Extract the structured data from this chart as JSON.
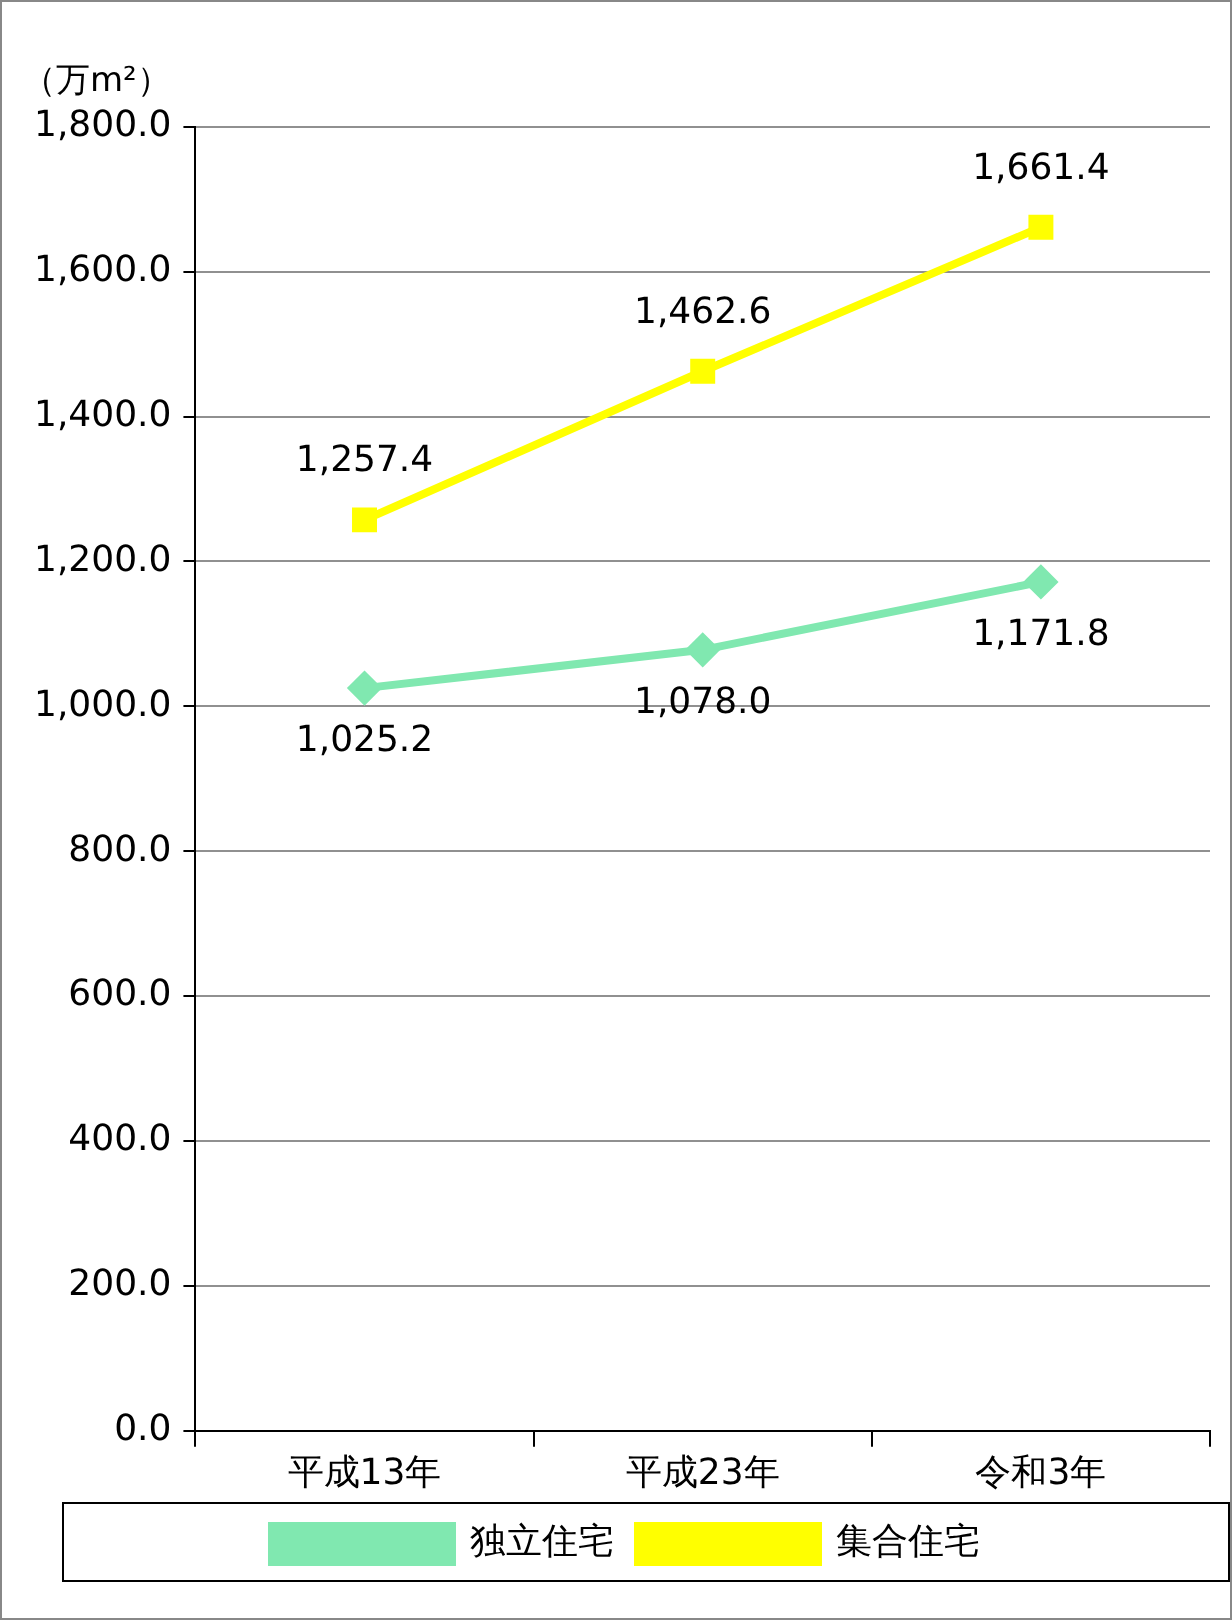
{
  "chart_data": {
    "type": "line",
    "ylabel": "（万m²）",
    "categories": [
      "平成13年",
      "平成23年",
      "令和3年"
    ],
    "series": [
      {
        "name": "独立住宅",
        "color": "#80e8b0",
        "marker": "diamond",
        "values": [
          1025.2,
          1078.0,
          1171.8
        ],
        "value_labels": [
          "1,025.2",
          "1,078.0",
          "1,171.8"
        ]
      },
      {
        "name": "集合住宅",
        "color": "#ffff00",
        "marker": "square",
        "values": [
          1257.4,
          1462.6,
          1661.4
        ],
        "value_labels": [
          "1,257.4",
          "1,462.6",
          "1,661.4"
        ]
      }
    ],
    "ylim": [
      0,
      1800
    ],
    "yticks": [
      {
        "value": 0,
        "label": "0.0"
      },
      {
        "value": 200,
        "label": "200.0"
      },
      {
        "value": 400,
        "label": "400.0"
      },
      {
        "value": 600,
        "label": "600.0"
      },
      {
        "value": 800,
        "label": "800.0"
      },
      {
        "value": 1000,
        "label": "1,000.0"
      },
      {
        "value": 1200,
        "label": "1,200.0"
      },
      {
        "value": 1400,
        "label": "1,400.0"
      },
      {
        "value": 1600,
        "label": "1,600.0"
      },
      {
        "value": 1800,
        "label": "1,800.0"
      }
    ],
    "grid": "y",
    "legend": "bottom",
    "line_style": "solid"
  }
}
